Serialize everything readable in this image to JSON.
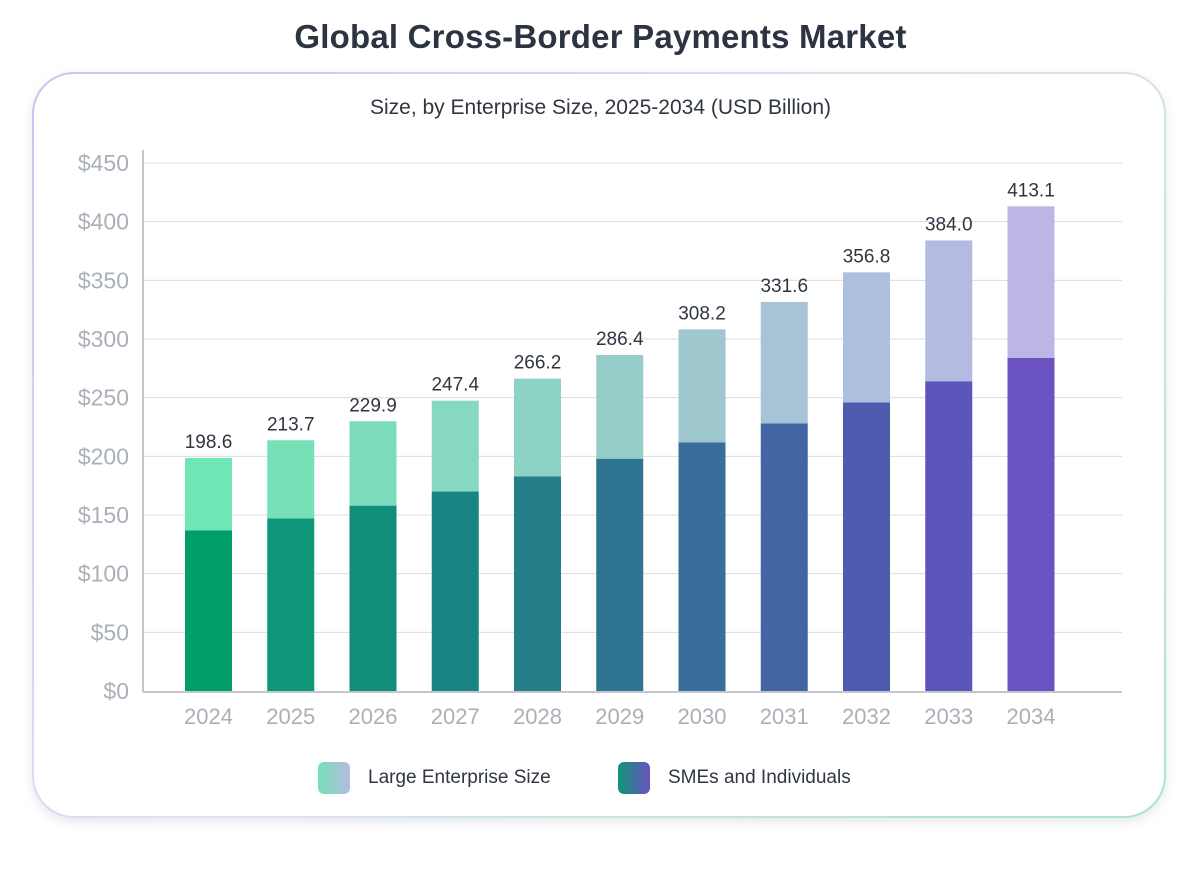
{
  "title": "Global Cross-Border Payments Market",
  "chart_data": {
    "type": "bar",
    "stacked": true,
    "title": "Size, by Enterprise Size, 2025-2034 (USD Billion)",
    "categories": [
      "2024",
      "2025",
      "2026",
      "2027",
      "2028",
      "2029",
      "2030",
      "2031",
      "2032",
      "2033",
      "2034"
    ],
    "series": [
      {
        "name": "SMEs and Individuals",
        "values": [
          137,
          147,
          158,
          170,
          183,
          198,
          212,
          228,
          246,
          264,
          284
        ],
        "colors": [
          "#019d6a",
          "#0f9577",
          "#128d7a",
          "#198483",
          "#257e8a",
          "#2e7591",
          "#396d9b",
          "#4365a4",
          "#4e5caf",
          "#5b55b9",
          "#6a52c0"
        ]
      },
      {
        "name": "Large Enterprise Size",
        "values": [
          61.6,
          66.7,
          71.9,
          77.4,
          83.2,
          88.4,
          96.2,
          103.6,
          110.8,
          120,
          129.1
        ],
        "colors": [
          "#6ee6b5",
          "#76e0b7",
          "#7cdbbb",
          "#86d8c0",
          "#8dd3c5",
          "#96cdc8",
          "#9ec7ce",
          "#a7c4d6",
          "#adbfdc",
          "#b4bbe2",
          "#bcb6e6"
        ]
      }
    ],
    "totals": [
      "198.6",
      "213.7",
      "229.9",
      "247.4",
      "266.2",
      "286.4",
      "308.2",
      "331.6",
      "356.8",
      "384.0",
      "413.1"
    ],
    "ylim": [
      0,
      450
    ],
    "yticks": [
      "$0",
      "$50",
      "$100",
      "$150",
      "$200",
      "$250",
      "$300",
      "$350",
      "$400",
      "$450"
    ],
    "ytick_values": [
      0,
      50,
      100,
      150,
      200,
      250,
      300,
      350,
      400,
      450
    ],
    "grid": true,
    "legend_position": "bottom",
    "legend": [
      {
        "label": "Large Enterprise Size",
        "colors": [
          "#76e0b7",
          "#b4bbe2"
        ]
      },
      {
        "label": "SMEs and Individuals",
        "colors": [
          "#0f9577",
          "#6a52c0"
        ]
      }
    ]
  }
}
